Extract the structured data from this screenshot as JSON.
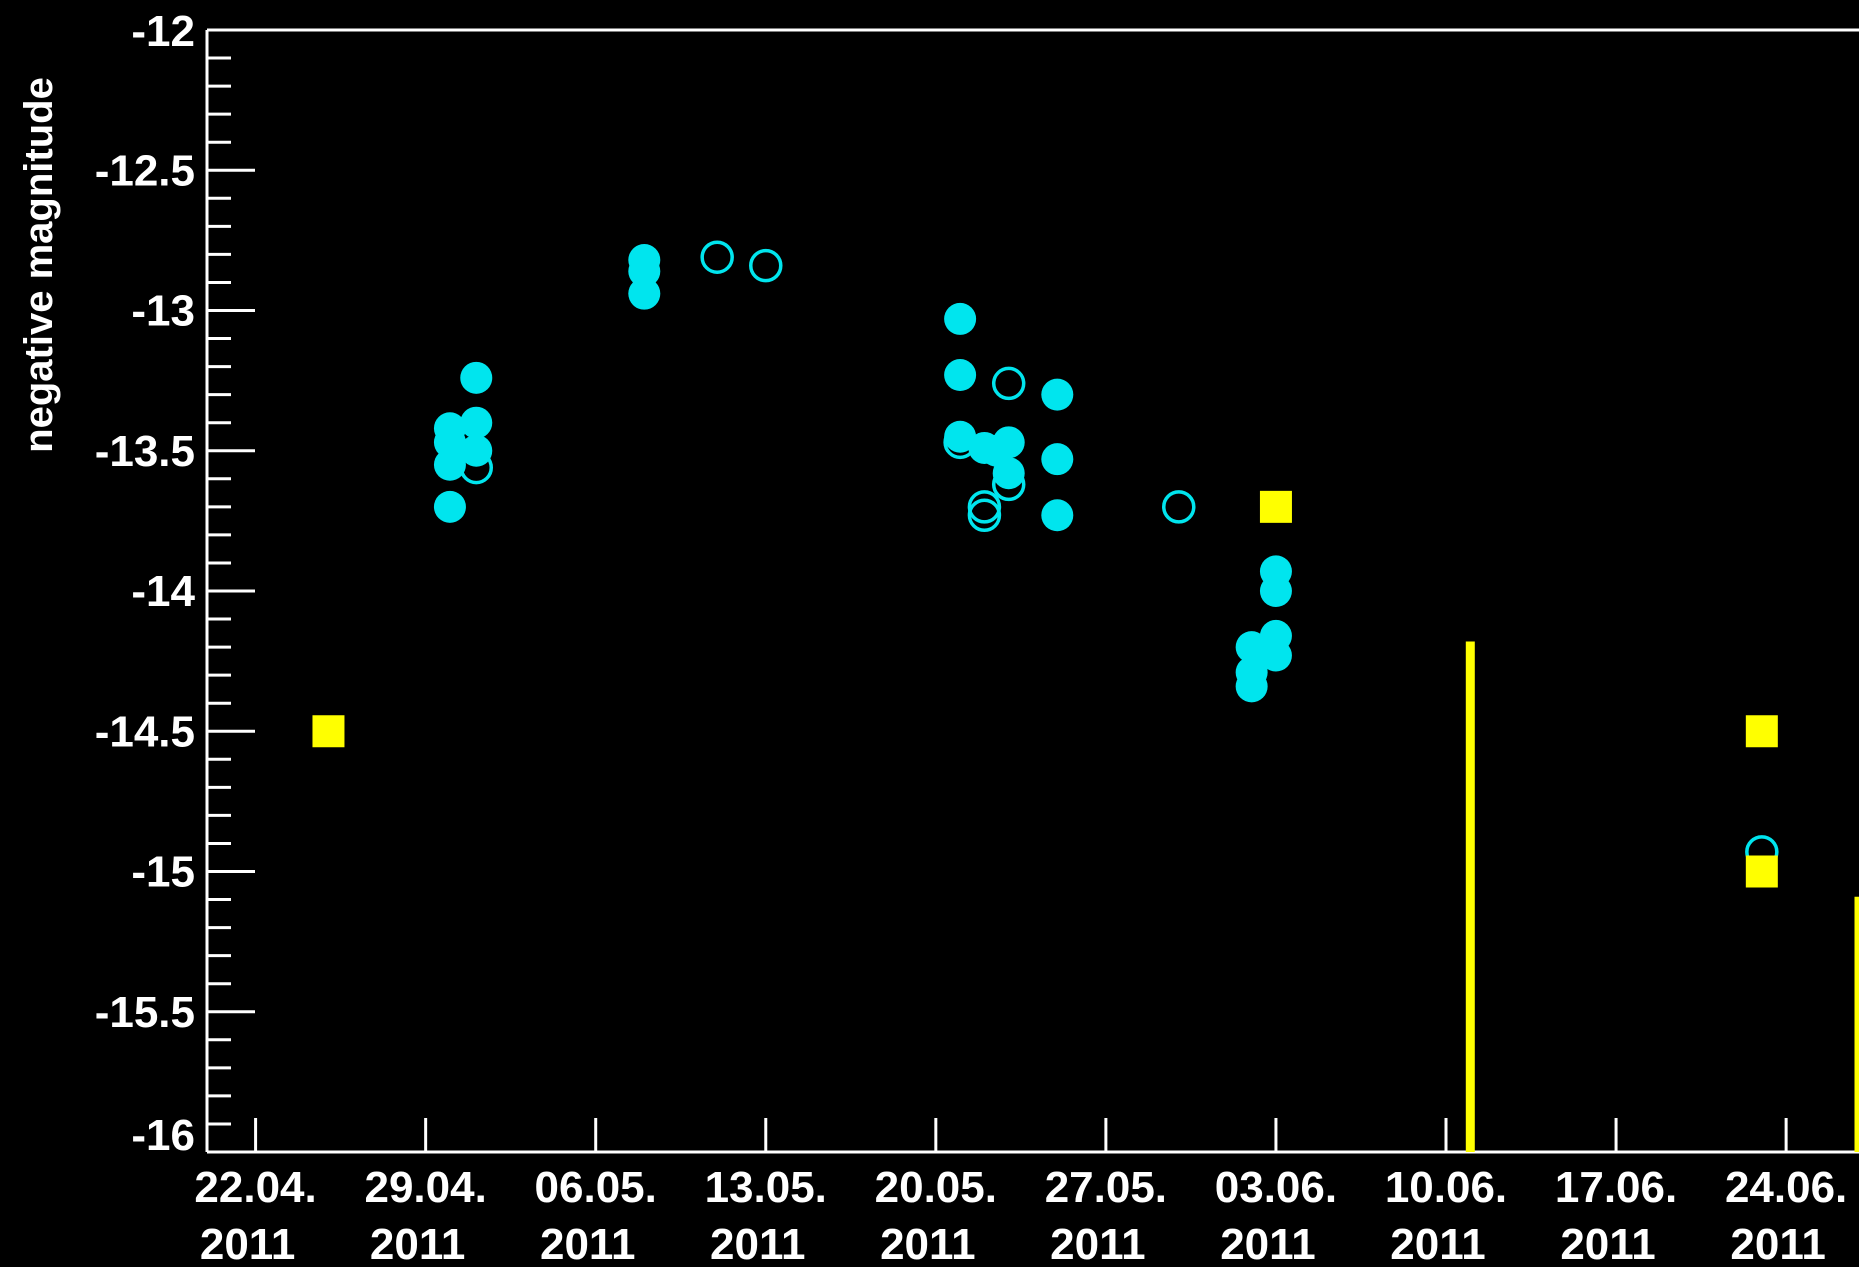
{
  "chart_data": {
    "type": "scatter",
    "ylabel": "negative magnitude",
    "xlabel": "",
    "ylim": [
      -16,
      -12
    ],
    "y_axis_inverted": true,
    "xlim": [
      "2011-04-20",
      "2011-06-27"
    ],
    "x_tick_labels": [
      {
        "date": "2011-04-22",
        "line1": "22.04.",
        "line2": "2011"
      },
      {
        "date": "2011-04-29",
        "line1": "29.04.",
        "line2": "2011"
      },
      {
        "date": "2011-05-06",
        "line1": "06.05.",
        "line2": "2011"
      },
      {
        "date": "2011-05-13",
        "line1": "13.05.",
        "line2": "2011"
      },
      {
        "date": "2011-05-20",
        "line1": "20.05.",
        "line2": "2011"
      },
      {
        "date": "2011-05-27",
        "line1": "27.05.",
        "line2": "2011"
      },
      {
        "date": "2011-06-03",
        "line1": "03.06.",
        "line2": "2011"
      },
      {
        "date": "2011-06-10",
        "line1": "10.06.",
        "line2": "2011"
      },
      {
        "date": "2011-06-17",
        "line1": "17.06.",
        "line2": "2011"
      },
      {
        "date": "2011-06-24",
        "line1": "24.06.",
        "line2": "2011"
      }
    ],
    "y_tick_labels": [
      "-12",
      "-12.5",
      "-13",
      "-13.5",
      "-14",
      "-14.5",
      "-15",
      "-15.5",
      "-16"
    ],
    "y_ticks": [
      -12,
      -12.5,
      -13,
      -13.5,
      -14,
      -14.5,
      -15,
      -15.5,
      -16
    ],
    "grid": false,
    "series": [
      {
        "marker": "filled-circle",
        "color": "#00e5ee",
        "points": [
          {
            "x": "2011-04-30T00:00",
            "y": -13.42
          },
          {
            "x": "2011-04-30T00:00",
            "y": -13.47
          },
          {
            "x": "2011-04-30T00:00",
            "y": -13.55
          },
          {
            "x": "2011-04-30T00:00",
            "y": -13.7
          },
          {
            "x": "2011-05-01T02:00",
            "y": -13.24
          },
          {
            "x": "2011-05-01T02:00",
            "y": -13.4
          },
          {
            "x": "2011-05-01T02:00",
            "y": -13.5
          },
          {
            "x": "2011-05-08T00:00",
            "y": -12.82
          },
          {
            "x": "2011-05-08T00:00",
            "y": -12.86
          },
          {
            "x": "2011-05-08T00:00",
            "y": -12.94
          },
          {
            "x": "2011-05-21T00:00",
            "y": -13.03
          },
          {
            "x": "2011-05-21T00:00",
            "y": -13.23
          },
          {
            "x": "2011-05-21T00:00",
            "y": -13.45
          },
          {
            "x": "2011-05-22T00:00",
            "y": -13.49
          },
          {
            "x": "2011-05-22T12:00",
            "y": -13.5
          },
          {
            "x": "2011-05-23T00:00",
            "y": -13.47
          },
          {
            "x": "2011-05-23T00:00",
            "y": -13.58
          },
          {
            "x": "2011-05-25T00:00",
            "y": -13.3
          },
          {
            "x": "2011-05-25T00:00",
            "y": -13.53
          },
          {
            "x": "2011-05-25T00:00",
            "y": -13.73
          },
          {
            "x": "2011-06-02T00:00",
            "y": -14.2
          },
          {
            "x": "2011-06-02T00:00",
            "y": -14.29
          },
          {
            "x": "2011-06-02T00:00",
            "y": -14.34
          },
          {
            "x": "2011-06-03T00:00",
            "y": -13.93
          },
          {
            "x": "2011-06-03T00:00",
            "y": -14.0
          },
          {
            "x": "2011-06-03T00:00",
            "y": -14.16
          },
          {
            "x": "2011-06-03T00:00",
            "y": -14.23
          }
        ]
      },
      {
        "marker": "open-circle",
        "color": "#00e5ee",
        "points": [
          {
            "x": "2011-05-01T02:00",
            "y": -13.56
          },
          {
            "x": "2011-05-11T00:00",
            "y": -12.81
          },
          {
            "x": "2011-05-13T00:00",
            "y": -12.84
          },
          {
            "x": "2011-05-21T00:00",
            "y": -13.47
          },
          {
            "x": "2011-05-22T00:00",
            "y": -13.7
          },
          {
            "x": "2011-05-22T00:00",
            "y": -13.73
          },
          {
            "x": "2011-05-23T00:00",
            "y": -13.26
          },
          {
            "x": "2011-05-23T00:00",
            "y": -13.62
          },
          {
            "x": "2011-05-30T00:00",
            "y": -13.7
          },
          {
            "x": "2011-06-23T00:00",
            "y": -14.93
          }
        ]
      },
      {
        "marker": "filled-square",
        "color": "#ffff00",
        "points": [
          {
            "x": "2011-04-25T00:00",
            "y": -14.5
          },
          {
            "x": "2011-06-03T00:00",
            "y": -13.7
          },
          {
            "x": "2011-06-23T00:00",
            "y": -14.5
          },
          {
            "x": "2011-06-23T00:00",
            "y": -15.0
          }
        ]
      }
    ],
    "vertical_markers": [
      {
        "color": "#ffff00",
        "x": "2011-06-11T00:00",
        "y_from": -14.18,
        "y_to": -16
      },
      {
        "color": "#ffff00",
        "x": "2011-06-27T00:00",
        "y_from": -15.09,
        "y_to": -16
      }
    ]
  }
}
